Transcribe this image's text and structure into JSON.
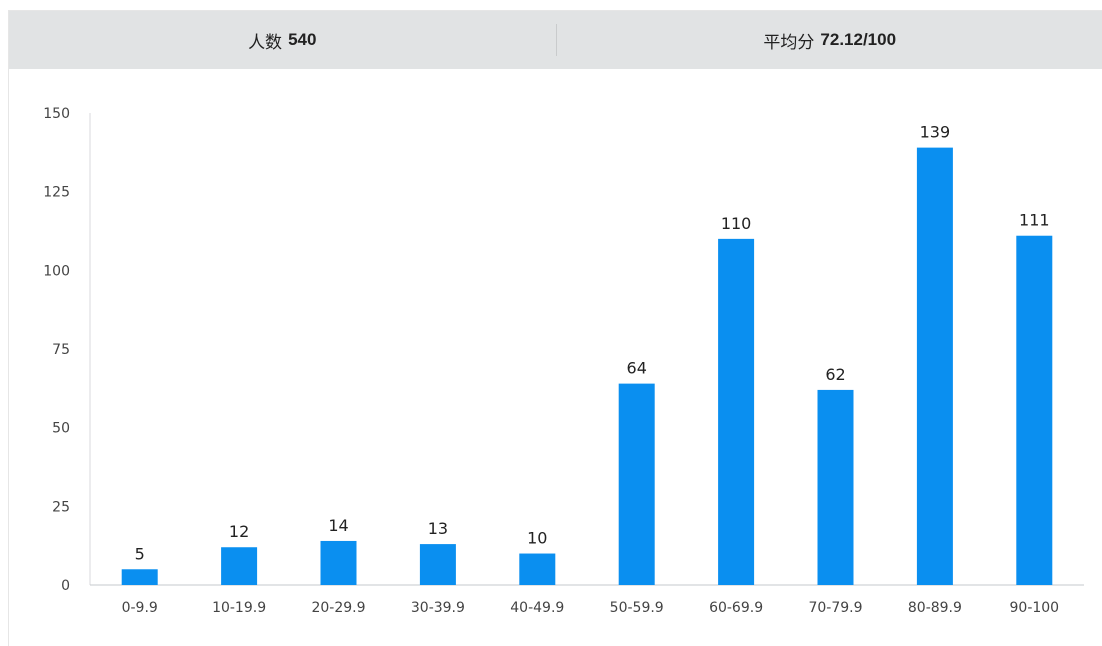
{
  "header": {
    "count_label": "人数",
    "count_value": "540",
    "avg_label": "平均分",
    "avg_value": "72.12/100"
  },
  "chart_data": {
    "type": "bar",
    "categories": [
      "0-9.9",
      "10-19.9",
      "20-29.9",
      "30-39.9",
      "40-49.9",
      "50-59.9",
      "60-69.9",
      "70-79.9",
      "80-89.9",
      "90-100"
    ],
    "values": [
      5,
      12,
      14,
      13,
      10,
      64,
      110,
      62,
      139,
      111
    ],
    "ylim": [
      0,
      150
    ],
    "yticks": [
      0,
      25,
      50,
      75,
      100,
      125,
      150
    ],
    "bar_color": "#0a8ff0",
    "grid": false,
    "show_data_labels": true
  }
}
